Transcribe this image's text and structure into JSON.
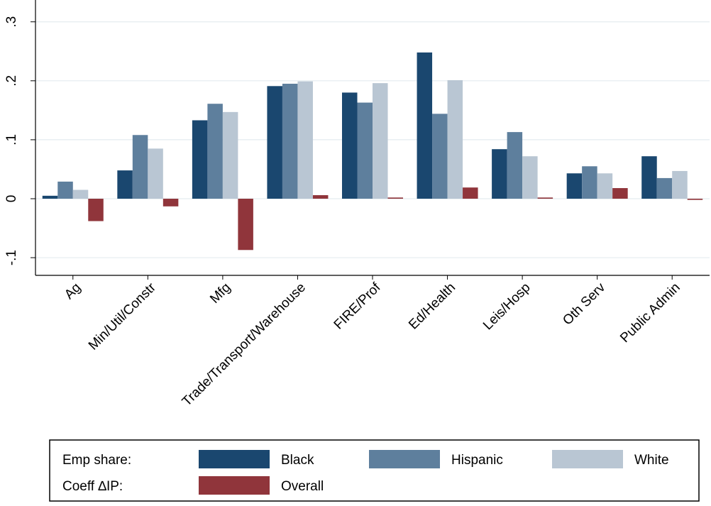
{
  "chart_data": {
    "type": "bar",
    "categories": [
      "Ag",
      "Min/Util/Constr",
      "Mfg",
      "Trade/Transport/Warehouse",
      "FIRE/Prof",
      "Ed/Health",
      "Leis/Hosp",
      "Oth Serv",
      "Public Admin"
    ],
    "series": [
      {
        "name": "Black",
        "color": "#1a476f",
        "values": [
          0.005,
          0.048,
          0.133,
          0.191,
          0.18,
          0.248,
          0.084,
          0.043,
          0.072
        ]
      },
      {
        "name": "Hispanic",
        "color": "#5e7f9d",
        "values": [
          0.029,
          0.108,
          0.161,
          0.195,
          0.163,
          0.144,
          0.113,
          0.055,
          0.035
        ]
      },
      {
        "name": "White",
        "color": "#b9c6d3",
        "values": [
          0.015,
          0.085,
          0.147,
          0.199,
          0.196,
          0.201,
          0.072,
          0.043,
          0.047
        ]
      },
      {
        "name": "Overall",
        "color": "#90353b",
        "values": [
          -0.038,
          -0.013,
          -0.087,
          0.006,
          0.002,
          0.019,
          0.002,
          0.018,
          -0.002
        ]
      }
    ],
    "legend_groups": [
      "Emp share:",
      "Coeff ∆IP:"
    ],
    "ylim": [
      -0.13,
      0.337
    ],
    "yticks": [
      {
        "value": -0.1,
        "label": "-.1"
      },
      0,
      {
        "value": 0.1,
        "label": ".1"
      },
      {
        "value": 0.2,
        "label": ".2"
      },
      {
        "value": 0.3,
        "label": ".3"
      }
    ],
    "grid": true
  }
}
